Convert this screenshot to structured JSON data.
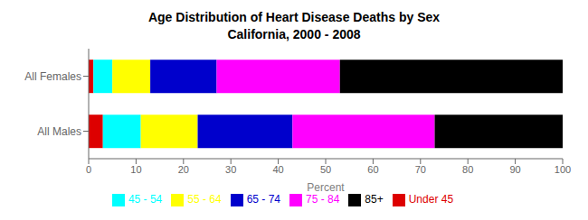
{
  "chart_data": {
    "type": "bar",
    "orientation": "horizontal",
    "stacked": true,
    "title": "Age Distribution of Heart Disease Deaths by Sex",
    "subtitle": "California, 2000 - 2008",
    "categories": [
      "All Females",
      "All Males"
    ],
    "series": [
      {
        "name": "Under 45",
        "color": "#dd0000",
        "values": [
          1,
          3
        ]
      },
      {
        "name": "45 - 54",
        "color": "#00ffff",
        "values": [
          4,
          8
        ]
      },
      {
        "name": "55 - 64",
        "color": "#ffff00",
        "values": [
          8,
          12
        ]
      },
      {
        "name": "65 - 74",
        "color": "#0000cc",
        "values": [
          14,
          20
        ]
      },
      {
        "name": "75 - 84",
        "color": "#ff00ff",
        "values": [
          26,
          30
        ]
      },
      {
        "name": "85+",
        "color": "#000000",
        "values": [
          47,
          27
        ]
      }
    ],
    "xlabel": "Percent",
    "xlim": [
      0,
      100
    ],
    "xticks": [
      0,
      10,
      20,
      30,
      40,
      50,
      60,
      70,
      80,
      90,
      100
    ],
    "grid": false,
    "legend": "bottom"
  }
}
